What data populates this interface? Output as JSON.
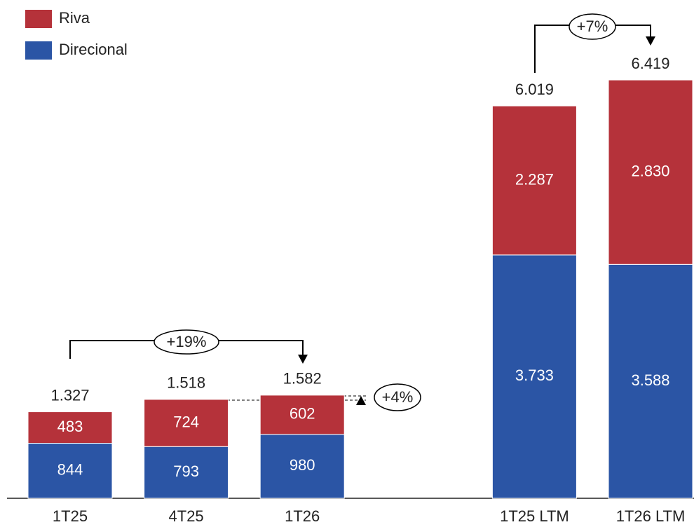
{
  "chart_data": {
    "type": "stacked-bar",
    "categories": [
      "1T25",
      "4T25",
      "1T26",
      "1T25 LTM",
      "1T26 LTM"
    ],
    "series": [
      {
        "name": "Direcional",
        "color": "#2b55a5",
        "values": [
          844,
          793,
          980,
          3733,
          3588
        ],
        "value_labels": [
          "844",
          "793",
          "980",
          "3.733",
          "3.588"
        ]
      },
      {
        "name": "Riva",
        "color": "#b5323a",
        "values": [
          483,
          724,
          602,
          2287,
          2830
        ],
        "value_labels": [
          "483",
          "724",
          "602",
          "2.287",
          "2.830"
        ]
      }
    ],
    "totals": {
      "values": [
        1327,
        1518,
        1582,
        6019,
        6419
      ],
      "value_labels": [
        "1.327",
        "1.518",
        "1.582",
        "6.019",
        "6.419"
      ]
    },
    "annotations": [
      "+19%",
      "+4%",
      "+7%"
    ],
    "legend": "top-left"
  }
}
